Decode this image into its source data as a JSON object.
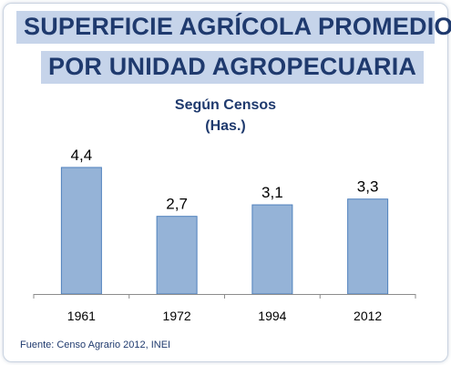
{
  "chart_data": {
    "type": "bar",
    "title": [
      "SUPERFICIE AGRÍCOLA PROMEDIO",
      "POR UNIDAD AGROPECUARIA"
    ],
    "subtitle": [
      "Según Censos",
      "(Has.)"
    ],
    "categories": [
      "1961",
      "1972",
      "1994",
      "2012"
    ],
    "values": [
      4.4,
      2.7,
      3.1,
      3.3
    ],
    "data_labels": [
      "4,4",
      "2,7",
      "3,1",
      "3,3"
    ],
    "ylim": [
      0,
      5
    ],
    "grid": false,
    "legend": "none",
    "bar_color": "#95b3d7",
    "bar_border_color": "#4f81bd"
  },
  "source": "Fuente: Censo Agrario 2012, INEI",
  "colors": {
    "title_text": "#1f3a6e",
    "title_background": "#c6d4ea"
  }
}
